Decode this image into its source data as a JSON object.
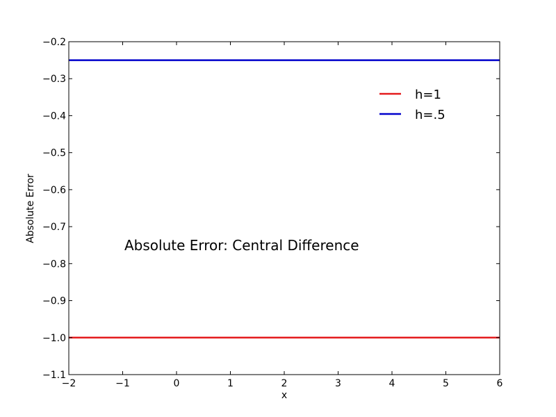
{
  "chart_data": {
    "type": "line",
    "xlabel": "x",
    "ylabel": "Absolute Error",
    "xlim": [
      -2,
      6
    ],
    "ylim": [
      -1.1,
      -0.2
    ],
    "xticks": [
      -2,
      -1,
      0,
      1,
      2,
      3,
      4,
      5,
      6
    ],
    "yticks": [
      -0.2,
      -0.3,
      -0.4,
      -0.5,
      -0.6,
      -0.7,
      -0.8,
      -0.9,
      -1.0,
      -1.1
    ],
    "xtick_labels": [
      "−2",
      "−1",
      "0",
      "1",
      "2",
      "3",
      "4",
      "5",
      "6"
    ],
    "ytick_labels": [
      "−0.2",
      "−0.3",
      "−0.4",
      "−0.5",
      "−0.6",
      "−0.7",
      "−0.8",
      "−0.9",
      "−1.0",
      "−1.1"
    ],
    "grid": false,
    "legend_position": "top-right",
    "annotation": "Absolute Error: Central Difference",
    "series": [
      {
        "name": "h=1",
        "color": "#e41a1c",
        "x": [
          -2,
          6
        ],
        "y": [
          -1.0,
          -1.0
        ]
      },
      {
        "name": "h=.5",
        "color": "#0000cc",
        "x": [
          -2,
          6
        ],
        "y": [
          -0.25,
          -0.25
        ]
      }
    ]
  }
}
